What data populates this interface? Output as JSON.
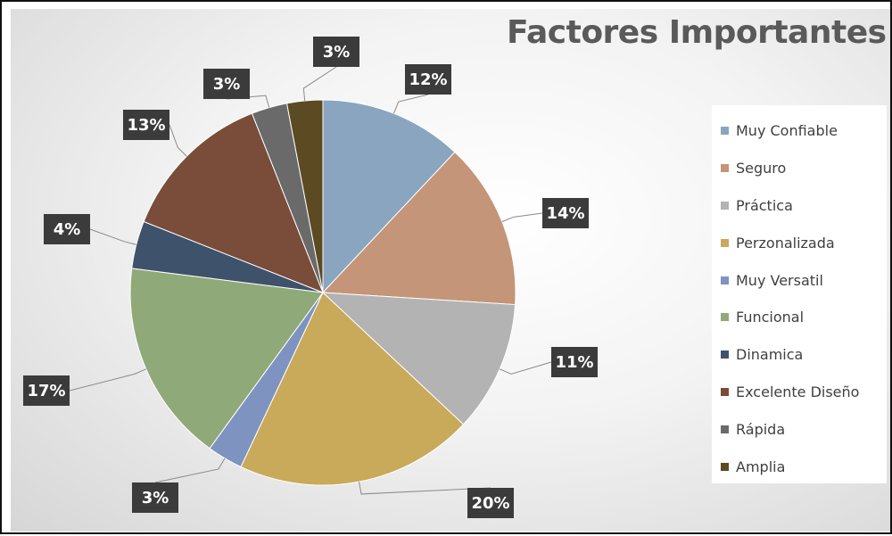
{
  "chart_data": {
    "type": "pie",
    "title": "Factores Importantes",
    "legend_position": "right",
    "slices": [
      {
        "name": "Muy Confiable",
        "label": "12%",
        "value": 12,
        "color": "#8aa5c0"
      },
      {
        "name": "Seguro",
        "label": "14%",
        "value": 14,
        "color": "#c49578"
      },
      {
        "name": "Práctica",
        "label": "11%",
        "value": 11,
        "color": "#b3b3b3"
      },
      {
        "name": "Perzonalizada",
        "label": "20%",
        "value": 20,
        "color": "#c9a95a"
      },
      {
        "name": "Muy Versatil",
        "label": "3%",
        "value": 3,
        "color": "#7f93c1"
      },
      {
        "name": "Funcional",
        "label": "17%",
        "value": 17,
        "color": "#8fa978"
      },
      {
        "name": "Dinamica",
        "label": "4%",
        "value": 4,
        "color": "#3e536b"
      },
      {
        "name": "Excelente Diseño",
        "label": "13%",
        "value": 13,
        "color": "#7a4c3a"
      },
      {
        "name": "Rápida",
        "label": "3%",
        "value": 3,
        "color": "#6a6a6a"
      },
      {
        "name": "Amplia",
        "label": "3%",
        "value": 3,
        "color": "#5c4a22"
      }
    ]
  }
}
